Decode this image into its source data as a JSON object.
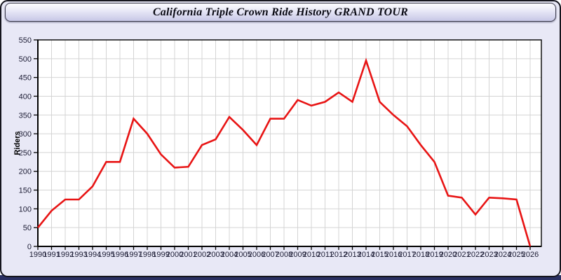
{
  "window": {
    "title": "California Triple Crown Ride History GRAND TOUR"
  },
  "chart_data": {
    "type": "line",
    "title": "California Triple Crown Ride History GRAND TOUR",
    "xlabel": "",
    "ylabel": "Riders",
    "x": [
      1990,
      1991,
      1992,
      1993,
      1994,
      1995,
      1996,
      1997,
      1998,
      1999,
      2000,
      2001,
      2002,
      2003,
      2004,
      2005,
      2006,
      2007,
      2008,
      2009,
      2010,
      2011,
      2012,
      2013,
      2014,
      2015,
      2016,
      2017,
      2018,
      2019,
      2020,
      2021,
      2022,
      2023,
      2024,
      2025,
      2026
    ],
    "series": [
      {
        "name": "Riders",
        "color": "#e81414",
        "values": [
          50,
          95,
          125,
          125,
          160,
          225,
          225,
          340,
          300,
          245,
          210,
          212,
          270,
          285,
          345,
          310,
          270,
          340,
          340,
          390,
          375,
          385,
          410,
          385,
          495,
          385,
          350,
          320,
          270,
          225,
          135,
          130,
          85,
          130,
          128,
          125,
          0
        ]
      }
    ],
    "ylim": [
      0,
      550
    ],
    "ytick_step": 50,
    "xlim": [
      1990,
      2026
    ],
    "grid": true,
    "legend": "none"
  },
  "colors": {
    "panel_bg": "#e8e8f6",
    "plot_bg": "#ffffff",
    "grid": "#d4d4d4",
    "axis": "#000000",
    "tick_label": "#1c1c34",
    "line": "#e81414",
    "bottom_bar": "#2a3062"
  }
}
